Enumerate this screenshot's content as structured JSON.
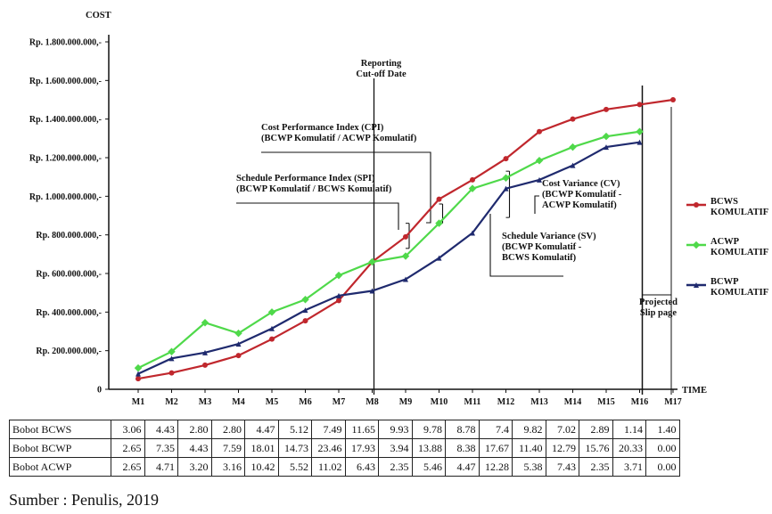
{
  "chart_data": {
    "type": "line",
    "ylabel": "COST",
    "xlabel": "TIME",
    "ylim": [
      0,
      1800000000
    ],
    "yticks": [
      {
        "value": 0,
        "label": "0"
      },
      {
        "value": 200000000,
        "label": "Rp. 200.000.000,-"
      },
      {
        "value": 400000000,
        "label": "Rp. 400.000.000,-"
      },
      {
        "value": 600000000,
        "label": "Rp. 600.000.000,-"
      },
      {
        "value": 800000000,
        "label": "Rp. 800.000.000,-"
      },
      {
        "value": 1000000000,
        "label": "Rp. 1.000.000.000,-"
      },
      {
        "value": 1200000000,
        "label": "Rp. 1.200.000.000,-"
      },
      {
        "value": 1400000000,
        "label": "Rp. 1.400.000.000,-"
      },
      {
        "value": 1600000000,
        "label": "Rp. 1.600.000.000,-"
      },
      {
        "value": 1800000000,
        "label": "Rp. 1.800.000.000,-"
      }
    ],
    "categories": [
      "M1",
      "M2",
      "M3",
      "M4",
      "M5",
      "M6",
      "M7",
      "M8",
      "M9",
      "M10",
      "M11",
      "M12",
      "M13",
      "M14",
      "M15",
      "M16",
      "M17"
    ],
    "series": [
      {
        "name": "BCWS KOMULATIF",
        "color": "#c0272d",
        "values": [
          55000000,
          85000000,
          125000000,
          175000000,
          260000000,
          355000000,
          460000000,
          660000000,
          790000000,
          985000000,
          1085000000,
          1195000000,
          1335000000,
          1400000000,
          1450000000,
          1475000000,
          1500000000
        ]
      },
      {
        "name": "ACWP KOMULATIF",
        "color": "#4fd94a",
        "values": [
          110000000,
          195000000,
          345000000,
          290000000,
          400000000,
          465000000,
          590000000,
          660000000,
          690000000,
          860000000,
          1040000000,
          1095000000,
          1185000000,
          1255000000,
          1310000000,
          1335000000,
          null
        ]
      },
      {
        "name": "BCWP KOMULATIF",
        "color": "#1f2a6e",
        "values": [
          80000000,
          160000000,
          190000000,
          235000000,
          315000000,
          410000000,
          485000000,
          510000000,
          570000000,
          680000000,
          810000000,
          1040000000,
          1085000000,
          1160000000,
          1255000000,
          1280000000,
          null
        ]
      }
    ],
    "legend_placement": "right",
    "annotations": {
      "cutoff": [
        "Reporting",
        "Cut-off Date"
      ],
      "cpi": [
        "Cost Performance Index (CPI)",
        "(BCWP Komulatif / ACWP Komulatif)"
      ],
      "spi": [
        "Schedule Performance Index (SPI)",
        "(BCWP Komulatif / BCWS Komulatif)"
      ],
      "cv": [
        "Cost Variance (CV)",
        "(BCWP Komulatif -",
        "ACWP Komulatif)"
      ],
      "sv": [
        "Schedule Variance (SV)",
        "(BCWP Komulatif -",
        "BCWS Komulatif)"
      ],
      "projected": [
        "Projected",
        "Slip page"
      ]
    },
    "legend": [
      {
        "lines": [
          "BCWS",
          "KOMULATIF"
        ]
      },
      {
        "lines": [
          "ACWP",
          "KOMULATIF"
        ]
      },
      {
        "lines": [
          "BCWP",
          "KOMULATIF"
        ]
      }
    ]
  },
  "table": {
    "rows": [
      {
        "label": "Bobot BCWS",
        "values": [
          "3.06",
          "4.43",
          "2.80",
          "2.80",
          "4.47",
          "5.12",
          "7.49",
          "11.65",
          "9.93",
          "9.78",
          "8.78",
          "7.4",
          "9.82",
          "7.02",
          "2.89",
          "1.14",
          "1.40"
        ]
      },
      {
        "label": "Bobot BCWP",
        "values": [
          "2.65",
          "7.35",
          "4.43",
          "7.59",
          "18.01",
          "14.73",
          "23.46",
          "17.93",
          "3.94",
          "13.88",
          "8.38",
          "17.67",
          "11.40",
          "12.79",
          "15.76",
          "20.33",
          "0.00"
        ]
      },
      {
        "label": "Bobot ACWP",
        "values": [
          "2.65",
          "4.71",
          "3.20",
          "3.16",
          "10.42",
          "5.52",
          "11.02",
          "6.43",
          "2.35",
          "5.46",
          "4.47",
          "12.28",
          "5.38",
          "7.43",
          "2.35",
          "3.71",
          "0.00"
        ]
      }
    ]
  },
  "source": "Sumber : Penulis, 2019"
}
